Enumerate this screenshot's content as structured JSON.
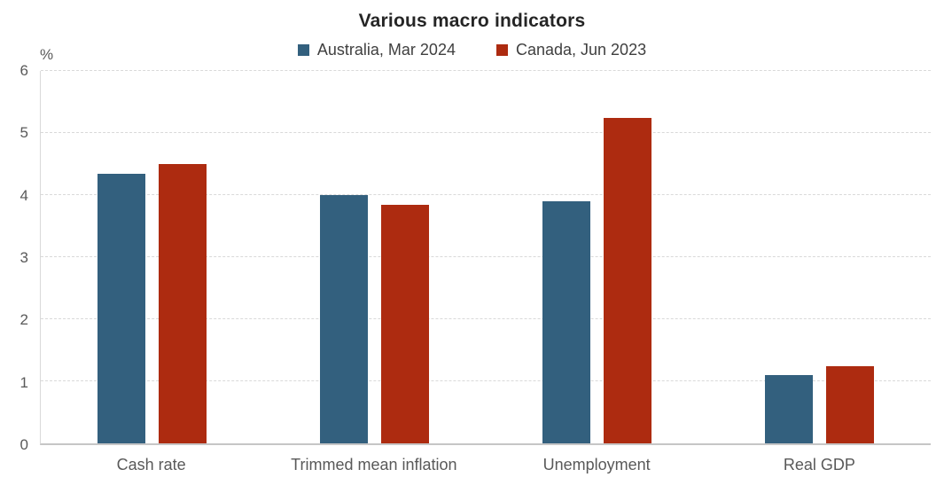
{
  "chart_data": {
    "type": "bar",
    "title": "Various macro indicators",
    "unit_label": "%",
    "categories": [
      "Cash rate",
      "Trimmed mean inflation",
      "Unemployment",
      "Real GDP"
    ],
    "series": [
      {
        "name": "Australia, Mar 2024",
        "color": "#33607E",
        "values": [
          4.35,
          4.0,
          3.9,
          1.1
        ]
      },
      {
        "name": "Canada, Jun 2023",
        "color": "#AD2B10",
        "values": [
          4.5,
          3.85,
          5.25,
          1.25
        ]
      }
    ],
    "ylim": [
      0,
      6
    ],
    "yticks": [
      0,
      1,
      2,
      3,
      4,
      5,
      6
    ],
    "xlabel": "",
    "ylabel": "%",
    "grid": "horizontal-dashed",
    "legend_position": "top-center",
    "colors": {
      "gridline": "#d9d9d9",
      "axis_line": "#c6c6c6",
      "tick_text": "#595959",
      "title_text": "#252525",
      "legend_text": "#3f3f3f"
    }
  }
}
